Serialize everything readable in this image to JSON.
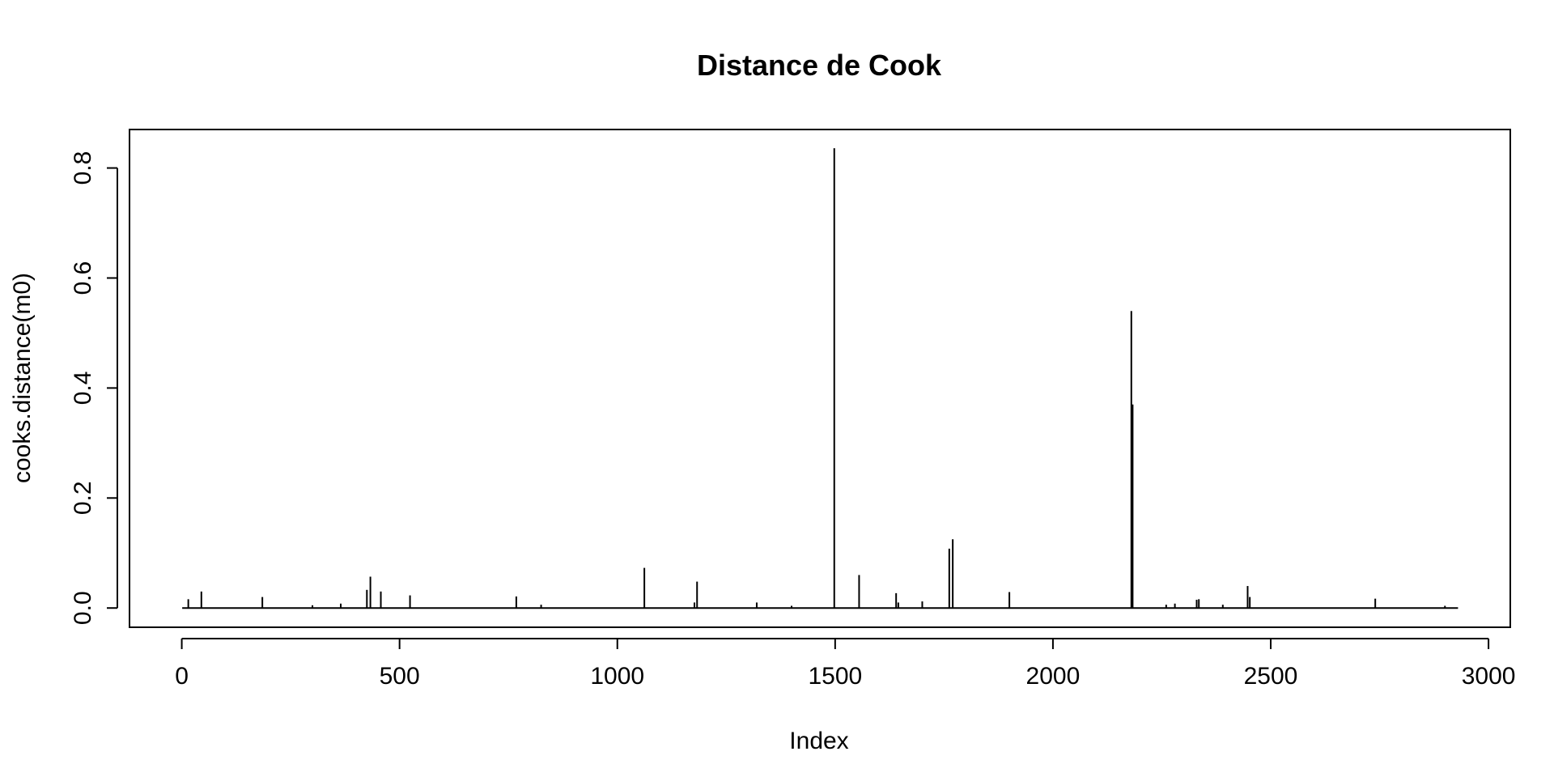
{
  "chart_data": {
    "type": "line",
    "title": "Distance de Cook",
    "xlabel": "Index",
    "ylabel": "cooks.distance(m0)",
    "xlim": [
      -120,
      3050
    ],
    "ylim": [
      -0.035,
      0.87
    ],
    "xticks": [
      0,
      500,
      1000,
      1500,
      2000,
      2500,
      3000
    ],
    "yticks": [
      0.0,
      0.2,
      0.4,
      0.6,
      0.8
    ],
    "xtick_labels": [
      "0",
      "500",
      "1000",
      "1500",
      "2000",
      "2500",
      "3000"
    ],
    "ytick_labels": [
      "0.0",
      "0.2",
      "0.4",
      "0.6",
      "0.8"
    ],
    "grid": false,
    "series": [
      {
        "n": 2930,
        "baseline": 0.0,
        "spikes": [
          {
            "x": 15,
            "y": 0.016
          },
          {
            "x": 45,
            "y": 0.03
          },
          {
            "x": 185,
            "y": 0.02
          },
          {
            "x": 300,
            "y": 0.005
          },
          {
            "x": 365,
            "y": 0.008
          },
          {
            "x": 425,
            "y": 0.033
          },
          {
            "x": 433,
            "y": 0.057
          },
          {
            "x": 457,
            "y": 0.03
          },
          {
            "x": 524,
            "y": 0.023
          },
          {
            "x": 768,
            "y": 0.021
          },
          {
            "x": 825,
            "y": 0.006
          },
          {
            "x": 1062,
            "y": 0.073
          },
          {
            "x": 1177,
            "y": 0.01
          },
          {
            "x": 1183,
            "y": 0.048
          },
          {
            "x": 1320,
            "y": 0.01
          },
          {
            "x": 1400,
            "y": 0.004
          },
          {
            "x": 1498,
            "y": 0.836
          },
          {
            "x": 1555,
            "y": 0.06
          },
          {
            "x": 1640,
            "y": 0.027
          },
          {
            "x": 1645,
            "y": 0.01
          },
          {
            "x": 1700,
            "y": 0.012
          },
          {
            "x": 1762,
            "y": 0.108
          },
          {
            "x": 1770,
            "y": 0.125
          },
          {
            "x": 1900,
            "y": 0.029
          },
          {
            "x": 2180,
            "y": 0.54
          },
          {
            "x": 2183,
            "y": 0.37
          },
          {
            "x": 2260,
            "y": 0.006
          },
          {
            "x": 2280,
            "y": 0.008
          },
          {
            "x": 2330,
            "y": 0.015
          },
          {
            "x": 2335,
            "y": 0.016
          },
          {
            "x": 2390,
            "y": 0.006
          },
          {
            "x": 2447,
            "y": 0.04
          },
          {
            "x": 2452,
            "y": 0.02
          },
          {
            "x": 2740,
            "y": 0.017
          },
          {
            "x": 2900,
            "y": 0.004
          }
        ]
      }
    ]
  }
}
